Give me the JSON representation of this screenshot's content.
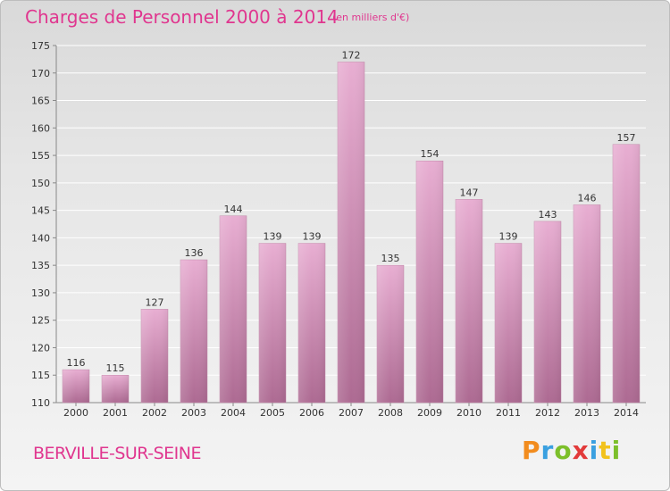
{
  "header": {
    "title": "Charges de Personnel 2000 à 2014",
    "subtitle": "(en milliers d'€)"
  },
  "footer": {
    "commune": "BERVILLE-SUR-SEINE",
    "logo_text": "Proxiti"
  },
  "colors": {
    "accent": "#e0368f",
    "bar_light": "#e6a6cc",
    "bar_dark": "#b0668f"
  },
  "chart_data": {
    "type": "bar",
    "title": "Charges de Personnel 2000 à 2014",
    "subtitle": "(en milliers d'€)",
    "xlabel": "",
    "ylabel": "",
    "categories": [
      "2000",
      "2001",
      "2002",
      "2003",
      "2004",
      "2005",
      "2006",
      "2007",
      "2008",
      "2009",
      "2010",
      "2011",
      "2012",
      "2013",
      "2014"
    ],
    "values": [
      116,
      115,
      127,
      136,
      144,
      139,
      139,
      172,
      135,
      154,
      147,
      139,
      143,
      146,
      157
    ],
    "ylim": [
      110,
      175
    ],
    "yticks": [
      110,
      115,
      120,
      125,
      130,
      135,
      140,
      145,
      150,
      155,
      160,
      165,
      170,
      175
    ],
    "grid": true,
    "legend": "none"
  }
}
